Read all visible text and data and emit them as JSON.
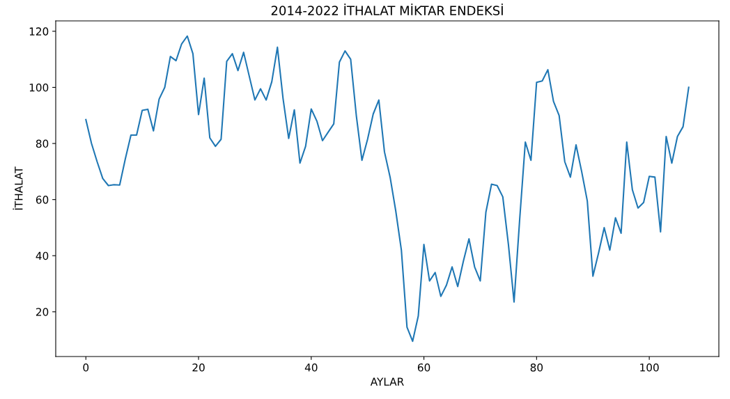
{
  "chart_data": {
    "type": "line",
    "title": "2014-2022 İTHALAT MİKTAR ENDEKSİ",
    "xlabel": "AYLAR",
    "ylabel": "İTHALAT",
    "x": [
      0,
      1,
      2,
      3,
      4,
      5,
      6,
      7,
      8,
      9,
      10,
      11,
      12,
      13,
      14,
      15,
      16,
      17,
      18,
      19,
      20,
      21,
      22,
      23,
      24,
      25,
      26,
      27,
      28,
      29,
      30,
      31,
      32,
      33,
      34,
      35,
      36,
      37,
      38,
      39,
      40,
      41,
      42,
      43,
      44,
      45,
      46,
      47,
      48,
      49,
      50,
      51,
      52,
      53,
      54,
      55,
      56,
      57,
      58,
      59,
      60,
      61,
      62,
      63,
      64,
      65,
      66,
      67,
      68,
      69,
      70,
      71,
      72,
      73,
      74,
      75,
      76,
      77,
      78,
      79,
      80,
      81,
      82,
      83,
      84,
      85,
      86,
      87,
      88,
      89,
      90,
      91,
      92,
      93,
      94,
      95,
      96,
      97,
      98,
      99,
      100,
      101,
      102,
      103,
      104,
      105,
      106,
      107
    ],
    "series": [
      {
        "color": "#1f77b4",
        "values": [
          88.5,
          80,
          73.5,
          67.5,
          65,
          65.3,
          65.2,
          74.5,
          83,
          83,
          91.8,
          92.2,
          84.5,
          95.8,
          100,
          111,
          109.5,
          115.5,
          118.3,
          112,
          90.3,
          103.3,
          82,
          79,
          81.5,
          109.3,
          112,
          106,
          112.5,
          104,
          95.5,
          99.5,
          95.5,
          102,
          114.3,
          96,
          81.8,
          92,
          73,
          79,
          92.3,
          88,
          81,
          84,
          87,
          109,
          113,
          110,
          90,
          74,
          81.5,
          90.5,
          95.5,
          77,
          68,
          56,
          42,
          14.5,
          9.5,
          18.5,
          44,
          31,
          34,
          25.5,
          29.5,
          36,
          29,
          38,
          46,
          36,
          31,
          55.5,
          65.5,
          65,
          61,
          44,
          23.5,
          53,
          80.5,
          74,
          101.8,
          102.3,
          106.3,
          95,
          90,
          73.5,
          68,
          79.5,
          70,
          59.5,
          32.7,
          41,
          50,
          42,
          53.5,
          48,
          80.5,
          63.5,
          57,
          59,
          68.3,
          68,
          48.5,
          82.5,
          73,
          82.5,
          86,
          100
        ]
      }
    ],
    "xlim": [
      -5.35,
      112.35
    ],
    "ylim": [
      4.06,
      123.7
    ],
    "xticks": [
      0,
      20,
      40,
      60,
      80,
      100
    ],
    "yticks": [
      20,
      40,
      60,
      80,
      100,
      120
    ],
    "grid": false,
    "marker": "none",
    "line_style": "solid"
  }
}
